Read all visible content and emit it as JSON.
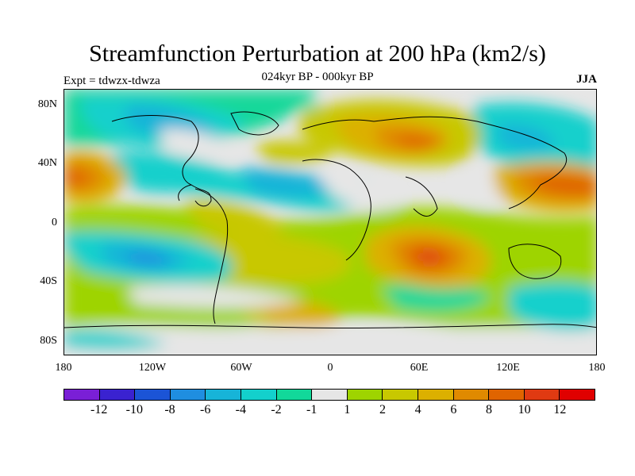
{
  "title": "Streamfunction Perturbation at 200 hPa (km2/s)",
  "subtitle": "024kyr BP - 000kyr BP",
  "left_label": "Expt = tdwzx-tdwza",
  "right_label": "JJA",
  "lat_labels": [
    "80N",
    "40N",
    "0",
    "40S",
    "80S"
  ],
  "lon_labels": [
    "180",
    "120W",
    "60W",
    "0",
    "60E",
    "120E",
    "180"
  ],
  "legend": {
    "colors": [
      "#7a1fd6",
      "#3a22d0",
      "#1b54d6",
      "#1f8ee0",
      "#17b4d8",
      "#13d0cc",
      "#12d89a",
      "#e6e6e6",
      "#9ed400",
      "#c8c800",
      "#dcb000",
      "#e08a00",
      "#e06400",
      "#e03a12",
      "#e00000"
    ],
    "labels": [
      "-12",
      "-10",
      "-8",
      "-6",
      "-4",
      "-2",
      "-1",
      "1",
      "2",
      "4",
      "6",
      "8",
      "10",
      "12"
    ]
  }
}
